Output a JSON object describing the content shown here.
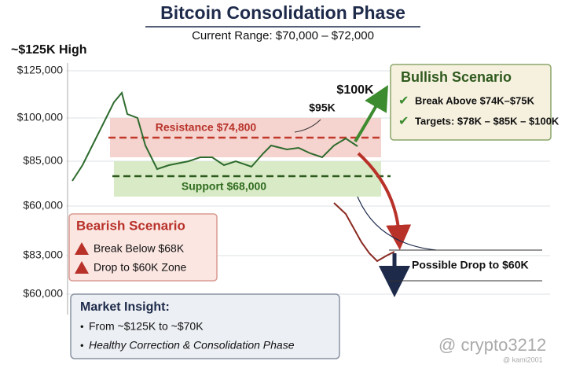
{
  "header": {
    "title": "Bitcoin Consolidation Phase",
    "subtitle": "Current Range: $70,000 – $72,000"
  },
  "chart": {
    "peak_label": "~$125K High",
    "y_labels": [
      "$125,000",
      "$100,000",
      "$85,000",
      "$60,000",
      "$83,000",
      "$60,000"
    ],
    "resistance": "Resistance $74,800",
    "support": "Support $68,000",
    "target_labels": [
      "$95K",
      "$100K"
    ],
    "drop_label": "Possible Drop to $60K"
  },
  "bullish": {
    "title": "Bullish Scenario",
    "items": [
      "Break Above $74K–$75K",
      "Targets: $78K – $85K – $100K"
    ]
  },
  "bearish": {
    "title": "Bearish Scenario",
    "items": [
      "Break Below $68K",
      "Drop to $60K Zone"
    ]
  },
  "insight": {
    "title": "Market Insight:",
    "items": [
      "From ~$125K to ~$70K",
      "Healthy Correction & Consolidation Phase"
    ]
  },
  "watermark": {
    "handle": "@ crypto3212",
    "user": "@ kami2001"
  }
}
